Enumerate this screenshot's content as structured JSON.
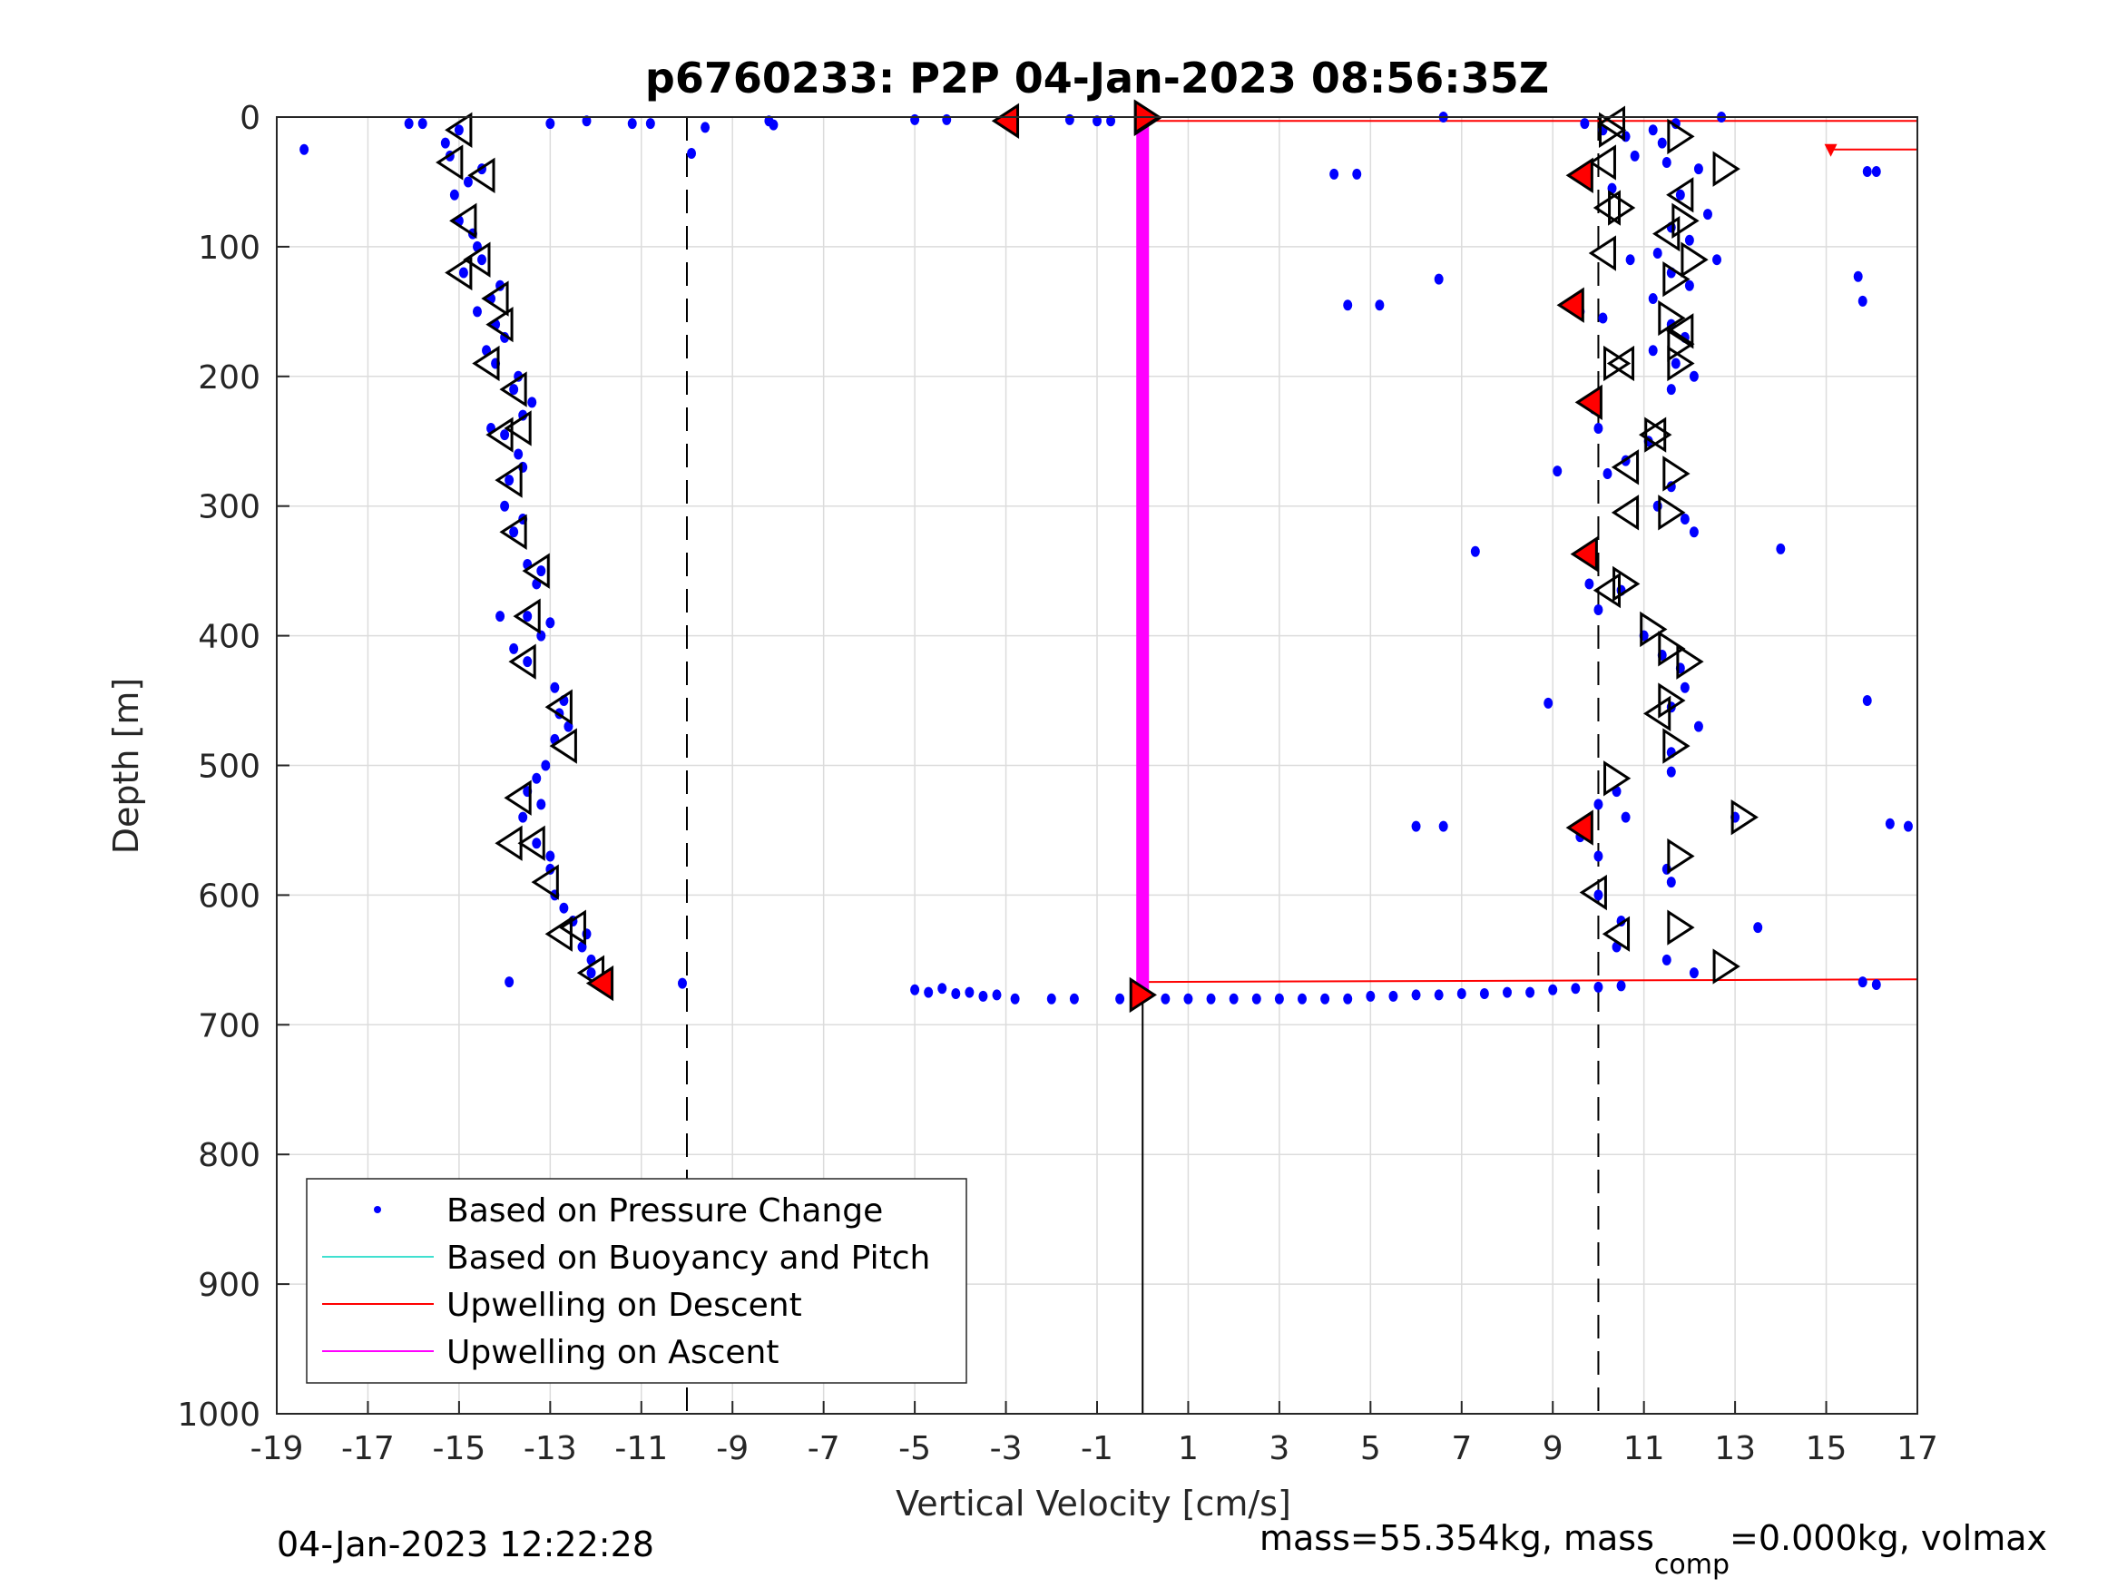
{
  "chart_data": {
    "type": "scatter",
    "title": "p6760233: P2P 04-Jan-2023 08:56:35Z",
    "xlabel": "Vertical Velocity [cm/s]",
    "ylabel": "Depth [m]",
    "xlim": [
      -19,
      17
    ],
    "ylim": [
      0,
      1000
    ],
    "y_reversed": true,
    "grid": true,
    "xticks": [
      "-19",
      "-17",
      "-15",
      "-13",
      "-11",
      "-9",
      "-7",
      "-5",
      "-3",
      "-1",
      "1",
      "3",
      "5",
      "7",
      "9",
      "11",
      "13",
      "15",
      "17"
    ],
    "yticks": [
      "0",
      "100",
      "200",
      "300",
      "400",
      "500",
      "600",
      "700",
      "800",
      "900",
      "1000"
    ],
    "legend": {
      "placement": "bottom-left",
      "entries": [
        {
          "label": "Based on Pressure Change",
          "color": "#0000ff",
          "style": "dot"
        },
        {
          "label": "Based on Buoyancy and Pitch",
          "color": "#40e0d0",
          "style": "line"
        },
        {
          "label": "Upwelling on Descent",
          "color": "#ff0000",
          "style": "line"
        },
        {
          "label": "Upwelling on Ascent",
          "color": "#ff00ff",
          "style": "line"
        }
      ]
    },
    "pressure_change_points": [
      [
        -15,
        10
      ],
      [
        -15.2,
        30
      ],
      [
        -14.8,
        50
      ],
      [
        -15,
        80
      ],
      [
        -14.6,
        100
      ],
      [
        -14.9,
        120
      ],
      [
        -14.3,
        140
      ],
      [
        -14.2,
        160
      ],
      [
        -14.4,
        180
      ],
      [
        -14.2,
        190
      ],
      [
        -13.8,
        210
      ],
      [
        -13.6,
        230
      ],
      [
        -14,
        245
      ],
      [
        -13.7,
        260
      ],
      [
        -13.9,
        280
      ],
      [
        -14,
        300
      ],
      [
        -13.8,
        320
      ],
      [
        -13.5,
        345
      ],
      [
        -13.3,
        360
      ],
      [
        -13.5,
        385
      ],
      [
        -13.2,
        400
      ],
      [
        -13.5,
        420
      ],
      [
        -12.9,
        440
      ],
      [
        -12.8,
        460
      ],
      [
        -12.9,
        480
      ],
      [
        -13.1,
        500
      ],
      [
        -13.5,
        520
      ],
      [
        -13.6,
        540
      ],
      [
        -13.3,
        560
      ],
      [
        -13,
        580
      ],
      [
        -12.9,
        600
      ],
      [
        -12.5,
        620
      ],
      [
        -12.3,
        640
      ],
      [
        -12.1,
        660
      ],
      [
        -11.9,
        668
      ],
      [
        -15.3,
        20
      ],
      [
        -14.5,
        40
      ],
      [
        -15.1,
        60
      ],
      [
        -14.7,
        90
      ],
      [
        -14.5,
        110
      ],
      [
        -14.1,
        130
      ],
      [
        -14.6,
        150
      ],
      [
        -14,
        170
      ],
      [
        -13.7,
        200
      ],
      [
        -13.4,
        220
      ],
      [
        -14.3,
        240
      ],
      [
        -13.6,
        270
      ],
      [
        -13.6,
        310
      ],
      [
        -13.2,
        350
      ],
      [
        -13.0,
        390
      ],
      [
        -13.8,
        410
      ],
      [
        -12.7,
        450
      ],
      [
        -12.6,
        470
      ],
      [
        -13.3,
        510
      ],
      [
        -13.2,
        530
      ],
      [
        -13.0,
        570
      ],
      [
        -12.7,
        610
      ],
      [
        -12.2,
        630
      ],
      [
        -12.1,
        650
      ],
      [
        -18.4,
        25
      ],
      [
        -16.1,
        5
      ],
      [
        -15.8,
        5
      ],
      [
        -13,
        5
      ],
      [
        -12.2,
        3
      ],
      [
        -11.2,
        5
      ],
      [
        -10.8,
        5
      ],
      [
        -9.9,
        28
      ],
      [
        -9.6,
        8
      ],
      [
        -8.2,
        3
      ],
      [
        -8.1,
        6
      ],
      [
        -5,
        2
      ],
      [
        -4.3,
        2
      ],
      [
        -1.6,
        2
      ],
      [
        -1,
        3
      ],
      [
        -0.7,
        3
      ],
      [
        -13.9,
        667
      ],
      [
        -10.1,
        668
      ],
      [
        -14.1,
        385
      ],
      [
        -5,
        673
      ],
      [
        -4.7,
        675
      ],
      [
        -4.4,
        672
      ],
      [
        -4.1,
        676
      ],
      [
        -3.8,
        675
      ],
      [
        -3.5,
        678
      ],
      [
        -3.2,
        677
      ],
      [
        -2.8,
        680
      ],
      [
        -2,
        680
      ],
      [
        -1.5,
        680
      ],
      [
        -0.5,
        680
      ],
      [
        0.5,
        680
      ],
      [
        1,
        680
      ],
      [
        1.5,
        680
      ],
      [
        2,
        680
      ],
      [
        2.5,
        680
      ],
      [
        3,
        680
      ],
      [
        3.5,
        680
      ],
      [
        4,
        680
      ],
      [
        4.5,
        680
      ],
      [
        5,
        678
      ],
      [
        5.5,
        678
      ],
      [
        6,
        677
      ],
      [
        6.5,
        677
      ],
      [
        7,
        676
      ],
      [
        7.5,
        676
      ],
      [
        8,
        675
      ],
      [
        8.5,
        675
      ],
      [
        9,
        673
      ],
      [
        9.5,
        672
      ],
      [
        10,
        671
      ],
      [
        10.5,
        670
      ],
      [
        6.6,
        0
      ],
      [
        9.7,
        5
      ],
      [
        10.1,
        10
      ],
      [
        10.6,
        15
      ],
      [
        11.2,
        10
      ],
      [
        11.7,
        5
      ],
      [
        12.7,
        0
      ],
      [
        11.4,
        20
      ],
      [
        10.8,
        30
      ],
      [
        11.5,
        35
      ],
      [
        12.2,
        40
      ],
      [
        9.5,
        45
      ],
      [
        10.3,
        55
      ],
      [
        11.8,
        60
      ],
      [
        12.4,
        75
      ],
      [
        11.6,
        85
      ],
      [
        12,
        95
      ],
      [
        12.6,
        110
      ],
      [
        11.3,
        105
      ],
      [
        10.7,
        110
      ],
      [
        11.6,
        120
      ],
      [
        12,
        130
      ],
      [
        11.2,
        140
      ],
      [
        9.6,
        150
      ],
      [
        10.1,
        155
      ],
      [
        11.6,
        160
      ],
      [
        11.9,
        170
      ],
      [
        11.2,
        180
      ],
      [
        11.7,
        190
      ],
      [
        12.1,
        200
      ],
      [
        11.6,
        210
      ],
      [
        9.9,
        225
      ],
      [
        10.0,
        240
      ],
      [
        11.1,
        250
      ],
      [
        10.6,
        265
      ],
      [
        9.1,
        273
      ],
      [
        10.2,
        275
      ],
      [
        11.6,
        285
      ],
      [
        11.3,
        300
      ],
      [
        11.9,
        310
      ],
      [
        12.1,
        320
      ],
      [
        9.8,
        340
      ],
      [
        9.8,
        360
      ],
      [
        10.5,
        365
      ],
      [
        10.0,
        380
      ],
      [
        11.0,
        400
      ],
      [
        11.4,
        415
      ],
      [
        11.8,
        425
      ],
      [
        11.9,
        440
      ],
      [
        11.6,
        455
      ],
      [
        12.2,
        470
      ],
      [
        11.6,
        490
      ],
      [
        11.6,
        505
      ],
      [
        10.4,
        520
      ],
      [
        10.0,
        530
      ],
      [
        10.6,
        540
      ],
      [
        9.6,
        555
      ],
      [
        10.0,
        570
      ],
      [
        11.5,
        580
      ],
      [
        11.6,
        590
      ],
      [
        10.0,
        600
      ],
      [
        10.5,
        620
      ],
      [
        10.4,
        640
      ],
      [
        11.5,
        650
      ],
      [
        12.1,
        660
      ],
      [
        13.5,
        625
      ],
      [
        13.0,
        540
      ],
      [
        8.9,
        452
      ],
      [
        7.3,
        335
      ],
      [
        14.0,
        333
      ],
      [
        4.2,
        44
      ],
      [
        4.7,
        44
      ],
      [
        4.5,
        145
      ],
      [
        5.2,
        145
      ],
      [
        6.5,
        125
      ],
      [
        15.7,
        123
      ],
      [
        15.8,
        142
      ],
      [
        15.9,
        42
      ],
      [
        16.1,
        42
      ],
      [
        15.9,
        450
      ],
      [
        16.4,
        545
      ],
      [
        16.8,
        547
      ],
      [
        6,
        547
      ],
      [
        6.6,
        547
      ],
      [
        15.8,
        667
      ],
      [
        16.1,
        669
      ]
    ],
    "descent_markers": [
      [
        -15,
        10
      ],
      [
        -15.2,
        35
      ],
      [
        -14.5,
        45
      ],
      [
        -14.9,
        80
      ],
      [
        -14.6,
        110
      ],
      [
        -15,
        120
      ],
      [
        -14.2,
        140
      ],
      [
        -14.1,
        160
      ],
      [
        -14.4,
        190
      ],
      [
        -13.8,
        210
      ],
      [
        -14.1,
        245
      ],
      [
        -13.7,
        240
      ],
      [
        -13.9,
        280
      ],
      [
        -13.8,
        320
      ],
      [
        -13.3,
        350
      ],
      [
        -13.5,
        385
      ],
      [
        -13.6,
        420
      ],
      [
        -12.8,
        455
      ],
      [
        -12.7,
        485
      ],
      [
        -13.7,
        525
      ],
      [
        -13.9,
        560
      ],
      [
        -13.4,
        560
      ],
      [
        -13.1,
        590
      ],
      [
        -12.5,
        625
      ],
      [
        -12.8,
        630
      ],
      [
        -12.1,
        660
      ]
    ],
    "ascent_markers": [
      [
        0.1,
        1
      ],
      [
        10.3,
        10
      ],
      [
        11.8,
        15
      ],
      [
        12.8,
        40
      ],
      [
        10.5,
        70
      ],
      [
        11.9,
        80
      ],
      [
        12.1,
        110
      ],
      [
        11.7,
        125
      ],
      [
        11.6,
        155
      ],
      [
        11.8,
        175
      ],
      [
        11.8,
        190
      ],
      [
        10.4,
        190
      ],
      [
        11.3,
        245
      ],
      [
        11.7,
        275
      ],
      [
        11.6,
        305
      ],
      [
        10.6,
        360
      ],
      [
        11.2,
        395
      ],
      [
        11.6,
        410
      ],
      [
        12,
        420
      ],
      [
        11.6,
        450
      ],
      [
        11.7,
        485
      ],
      [
        10.4,
        510
      ],
      [
        13.2,
        540
      ],
      [
        11.8,
        570
      ],
      [
        11.8,
        625
      ],
      [
        12.8,
        655
      ]
    ],
    "ascent_markers_left": [
      [
        10.3,
        5
      ],
      [
        10.1,
        35
      ],
      [
        10.2,
        70
      ],
      [
        10.1,
        105
      ],
      [
        11.8,
        60
      ],
      [
        11.5,
        90
      ],
      [
        11.8,
        165
      ],
      [
        10.5,
        190
      ],
      [
        11.2,
        245
      ],
      [
        10.6,
        270
      ],
      [
        10.6,
        305
      ],
      [
        10.2,
        365
      ],
      [
        11.3,
        460
      ],
      [
        9.9,
        598
      ],
      [
        10.4,
        630
      ]
    ],
    "red_markers_left": [
      [
        -3,
        3
      ],
      [
        -11.9,
        668
      ],
      [
        9.6,
        45
      ],
      [
        9.4,
        145
      ],
      [
        9.8,
        220
      ],
      [
        9.7,
        337
      ],
      [
        9.6,
        548
      ]
    ],
    "red_markers_right": [
      [
        0.1,
        0
      ],
      [
        0,
        677
      ]
    ],
    "lines": [
      {
        "name": "upwelling-descent-top",
        "color": "#ff0000",
        "x": [
          0,
          17
        ],
        "y": [
          3,
          3
        ]
      },
      {
        "name": "upwelling-descent-bottom",
        "color": "#ff0000",
        "x": [
          0,
          17
        ],
        "y": [
          667,
          665
        ]
      },
      {
        "name": "upwelling-descent-short",
        "color": "#ff0000",
        "x": [
          15.1,
          17
        ],
        "y": [
          25,
          25
        ]
      },
      {
        "name": "upwelling-ascent",
        "color": "#ff00ff",
        "x": [
          0,
          0
        ],
        "y": [
          3,
          675
        ]
      },
      {
        "name": "zero-line",
        "color": "#000000",
        "x": [
          0,
          0
        ],
        "y": [
          675,
          1000
        ]
      }
    ],
    "dashed_x": [
      -10,
      10
    ]
  },
  "footer": {
    "timestamp": "04-Jan-2023 12:22:28",
    "mass_text_a": "mass=55.354kg, mass",
    "mass_sub": "comp",
    "mass_text_b": "=0.000kg, volmax"
  }
}
